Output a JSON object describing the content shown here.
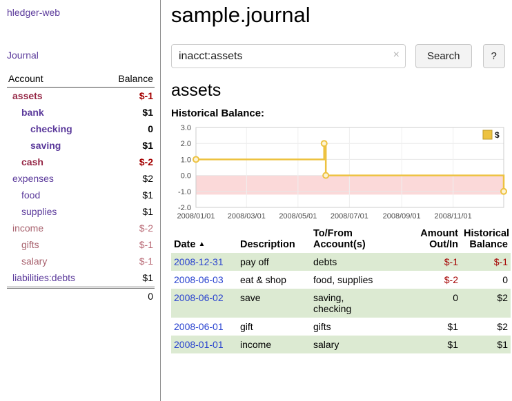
{
  "colors": {
    "accent_purple": "#5b3a9b",
    "maroon": "#952645",
    "negative_red": "#a40000",
    "muted_red": "#a8626e",
    "row_green": "#dcead2",
    "date_link_blue": "#2741cf",
    "chart_line": "#edc240",
    "chart_negative_fill": "#fbd9d9"
  },
  "sidebar": {
    "app_title": "hledger-web",
    "journal_link": "Journal",
    "accounts": {
      "col_account": "Account",
      "col_balance": "Balance",
      "rows": [
        {
          "name": "assets",
          "balance": "$-1",
          "indent": 0,
          "emph": true,
          "name_tone": "maroon",
          "balance_tone": "negative"
        },
        {
          "name": "bank",
          "balance": "$1",
          "indent": 1,
          "emph": true,
          "name_tone": "purple",
          "balance_tone": "plain"
        },
        {
          "name": "checking",
          "balance": "0",
          "indent": 2,
          "emph": true,
          "name_tone": "purple",
          "balance_tone": "plain"
        },
        {
          "name": "saving",
          "balance": "$1",
          "indent": 2,
          "emph": true,
          "name_tone": "purple",
          "balance_tone": "plain"
        },
        {
          "name": "cash",
          "balance": "$-2",
          "indent": 1,
          "emph": true,
          "name_tone": "maroon",
          "balance_tone": "negative"
        },
        {
          "name": "expenses",
          "balance": "$2",
          "indent": 0,
          "emph": false,
          "name_tone": "purple",
          "balance_tone": "plain"
        },
        {
          "name": "food",
          "balance": "$1",
          "indent": 1,
          "emph": false,
          "name_tone": "purple",
          "balance_tone": "plain"
        },
        {
          "name": "supplies",
          "balance": "$1",
          "indent": 1,
          "emph": false,
          "name_tone": "purple",
          "balance_tone": "plain"
        },
        {
          "name": "income",
          "balance": "$-2",
          "indent": 0,
          "emph": false,
          "name_tone": "muted-red",
          "balance_tone": "muted-negative"
        },
        {
          "name": "gifts",
          "balance": "$-1",
          "indent": 1,
          "emph": false,
          "name_tone": "muted-red",
          "balance_tone": "muted-negative"
        },
        {
          "name": "salary",
          "balance": "$-1",
          "indent": 1,
          "emph": false,
          "name_tone": "muted-red",
          "balance_tone": "muted-negative"
        },
        {
          "name": "liabilities:debts",
          "balance": "$1",
          "indent": 0,
          "emph": false,
          "name_tone": "purple",
          "balance_tone": "plain"
        }
      ],
      "total": "0"
    }
  },
  "main": {
    "title": "sample.journal",
    "search": {
      "value": "inacct:assets",
      "clear_icon": "×",
      "button_label": "Search",
      "help_label": "?"
    },
    "account_heading": "assets",
    "register": {
      "headers": {
        "date": "Date",
        "sort_indicator": "▲",
        "description": "Description",
        "accounts": "To/From\nAccount(s)",
        "amount": "Amount\nOut/In",
        "historical": "Historical\nBalance"
      },
      "rows": [
        {
          "date": "2008-12-31",
          "description": "pay off",
          "accounts": "debts",
          "amount": "$-1",
          "amount_negative": true,
          "historical": "$-1",
          "historical_negative": true,
          "shaded": true
        },
        {
          "date": "2008-06-03",
          "description": "eat & shop",
          "accounts": "food, supplies",
          "amount": "$-2",
          "amount_negative": true,
          "historical": "0",
          "historical_negative": false,
          "shaded": false
        },
        {
          "date": "2008-06-02",
          "description": "save",
          "accounts": "saving,\nchecking",
          "amount": "0",
          "amount_negative": false,
          "historical": "$2",
          "historical_negative": false,
          "shaded": true
        },
        {
          "date": "2008-06-01",
          "description": "gift",
          "accounts": "gifts",
          "amount": "$1",
          "amount_negative": false,
          "historical": "$2",
          "historical_negative": false,
          "shaded": false
        },
        {
          "date": "2008-01-01",
          "description": "income",
          "accounts": "salary",
          "amount": "$1",
          "amount_negative": false,
          "historical": "$1",
          "historical_negative": false,
          "shaded": true
        }
      ]
    }
  },
  "chart_data": {
    "type": "line",
    "title": "Historical Balance:",
    "x_start": "2008-01-01",
    "x_end": "2008-12-31",
    "ylim": [
      -2,
      3
    ],
    "yticks": [
      3.0,
      2.0,
      1.0,
      0.0,
      -1.0,
      -2.0
    ],
    "xticks": [
      "2008/01/01",
      "2008/03/01",
      "2008/05/01",
      "2008/07/01",
      "2008/09/01",
      "2008/11/01"
    ],
    "series": [
      {
        "name": "$",
        "style": "step",
        "points": [
          [
            "2008-01-01",
            1
          ],
          [
            "2008-06-01",
            2
          ],
          [
            "2008-06-03",
            0
          ],
          [
            "2008-12-31",
            -1
          ]
        ]
      }
    ],
    "negative_region": {
      "from": 0,
      "to": -1.2
    },
    "legend_position": "top-right",
    "grid": true,
    "colors": {
      "line": "#edc240",
      "negative_fill": "#fbd9d9"
    }
  }
}
